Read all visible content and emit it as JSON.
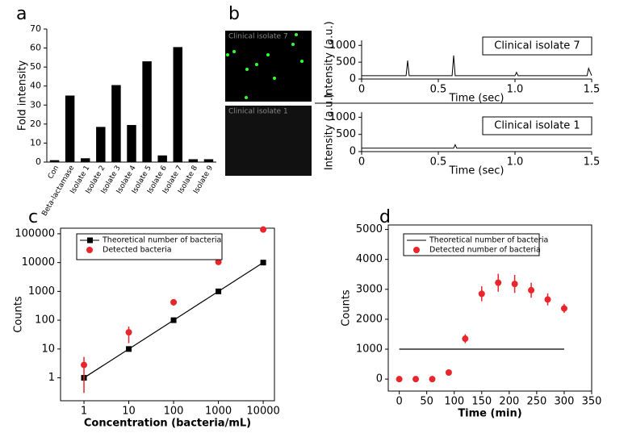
{
  "chart_data": [
    {
      "type": "bar",
      "panel_label": "a",
      "ylabel": "Fold intensity",
      "categories": [
        "Con",
        "Beta-lactamase",
        "Isolate 1",
        "Isolate 2",
        "Isolate 3",
        "Isolate 4",
        "Isolate 5",
        "Isolate 6",
        "Isolate 7",
        "Isolate 8",
        "Isolate 9"
      ],
      "values": [
        1,
        35,
        2,
        18.5,
        40.5,
        19.5,
        53,
        3.5,
        60.5,
        1.5,
        1.5
      ],
      "color": "#000000",
      "ylim": [
        0,
        70
      ],
      "yticks": [
        0,
        10,
        20,
        30,
        40,
        50,
        60,
        70
      ]
    },
    {
      "type": "line",
      "panel_label": "b",
      "image_label": "Clinical isolate 7",
      "annotation": "Clinical isolate 7",
      "ylabel": "Intensity (a.u.)",
      "xlabel": "Time (sec)",
      "x": [
        0,
        0.29,
        0.3,
        0.31,
        0.59,
        0.6,
        0.61,
        1.0,
        1.01,
        1.02,
        1.47,
        1.48,
        1.5
      ],
      "values": [
        100,
        100,
        550,
        100,
        100,
        700,
        100,
        100,
        200,
        100,
        100,
        320,
        100
      ],
      "color": "#000000",
      "xlim": [
        0,
        1.5
      ],
      "xticks": [
        0,
        0.5,
        {
          "value": 1,
          "label": "1.0"
        },
        1.5
      ],
      "ylim": [
        0,
        1150
      ],
      "yticks": [
        0,
        500,
        1000
      ]
    },
    {
      "type": "line",
      "image_label": "Clinical isolate 1",
      "annotation": "Clinical isolate 1",
      "ylabel": "Intensity (a.u.)",
      "xlabel": "Time (sec)",
      "x": [
        0,
        0.6,
        0.61,
        0.62,
        1.5
      ],
      "values": [
        100,
        100,
        200,
        100,
        100
      ],
      "color": "#000000",
      "xlim": [
        0,
        1.5
      ],
      "xticks": [
        0,
        0.5,
        {
          "value": 1,
          "label": "1.0"
        },
        1.5
      ],
      "ylim": [
        0,
        1150
      ],
      "yticks": [
        0,
        500,
        1000
      ]
    },
    {
      "type": "scatter",
      "panel_label": "c",
      "ylabel": "Counts",
      "xlabel": "Concentration (bacteria/mL)",
      "xscale": "log",
      "yscale": "log",
      "x": [
        1,
        10,
        100,
        1000,
        10000
      ],
      "series": [
        {
          "name": "Theoretical number of bacteria",
          "color": "#000000",
          "marker": "square",
          "line": true,
          "values": [
            1,
            10,
            100,
            1000,
            10000
          ]
        },
        {
          "name": "Detected bacteria",
          "color": "#e8262b",
          "marker": "circle",
          "line": false,
          "values": [
            2.8,
            38,
            420,
            10500,
            140000
          ],
          "errors": [
            2.5,
            22,
            100,
            500,
            10000
          ]
        }
      ],
      "xlim": [
        0.3,
        17800
      ],
      "xticks": [
        1,
        10,
        100,
        1000,
        10000
      ],
      "ylim": [
        0.16,
        156000
      ],
      "yticks": [
        1,
        10,
        100,
        1000,
        10000,
        100000
      ]
    },
    {
      "type": "scatter",
      "panel_label": "d",
      "ylabel": "Counts",
      "xlabel": "Time (min)",
      "x": [
        0,
        30,
        60,
        90,
        120,
        150,
        180,
        210,
        240,
        270,
        300
      ],
      "series": [
        {
          "name": "Theoretical number of bacteria",
          "color": "#000000",
          "line": true,
          "values": [
            1000,
            1000,
            1000,
            1000,
            1000,
            1000,
            1000,
            1000,
            1000,
            1000,
            1000
          ]
        },
        {
          "name": "Detected number of bacteria",
          "color": "#e8262b",
          "marker": "circle",
          "line": false,
          "values": [
            0,
            0,
            0,
            220,
            1350,
            2850,
            3220,
            3180,
            2970,
            2660,
            2360
          ],
          "errors": [
            0,
            0,
            0,
            0,
            150,
            250,
            300,
            300,
            250,
            200,
            150
          ]
        }
      ],
      "xlim": [
        -20,
        350
      ],
      "xticks": [
        0,
        50,
        100,
        150,
        200,
        250,
        300,
        350
      ],
      "ylim": [
        -400,
        5150
      ],
      "yticks": [
        0,
        1000,
        2000,
        3000,
        4000,
        5000
      ]
    }
  ]
}
